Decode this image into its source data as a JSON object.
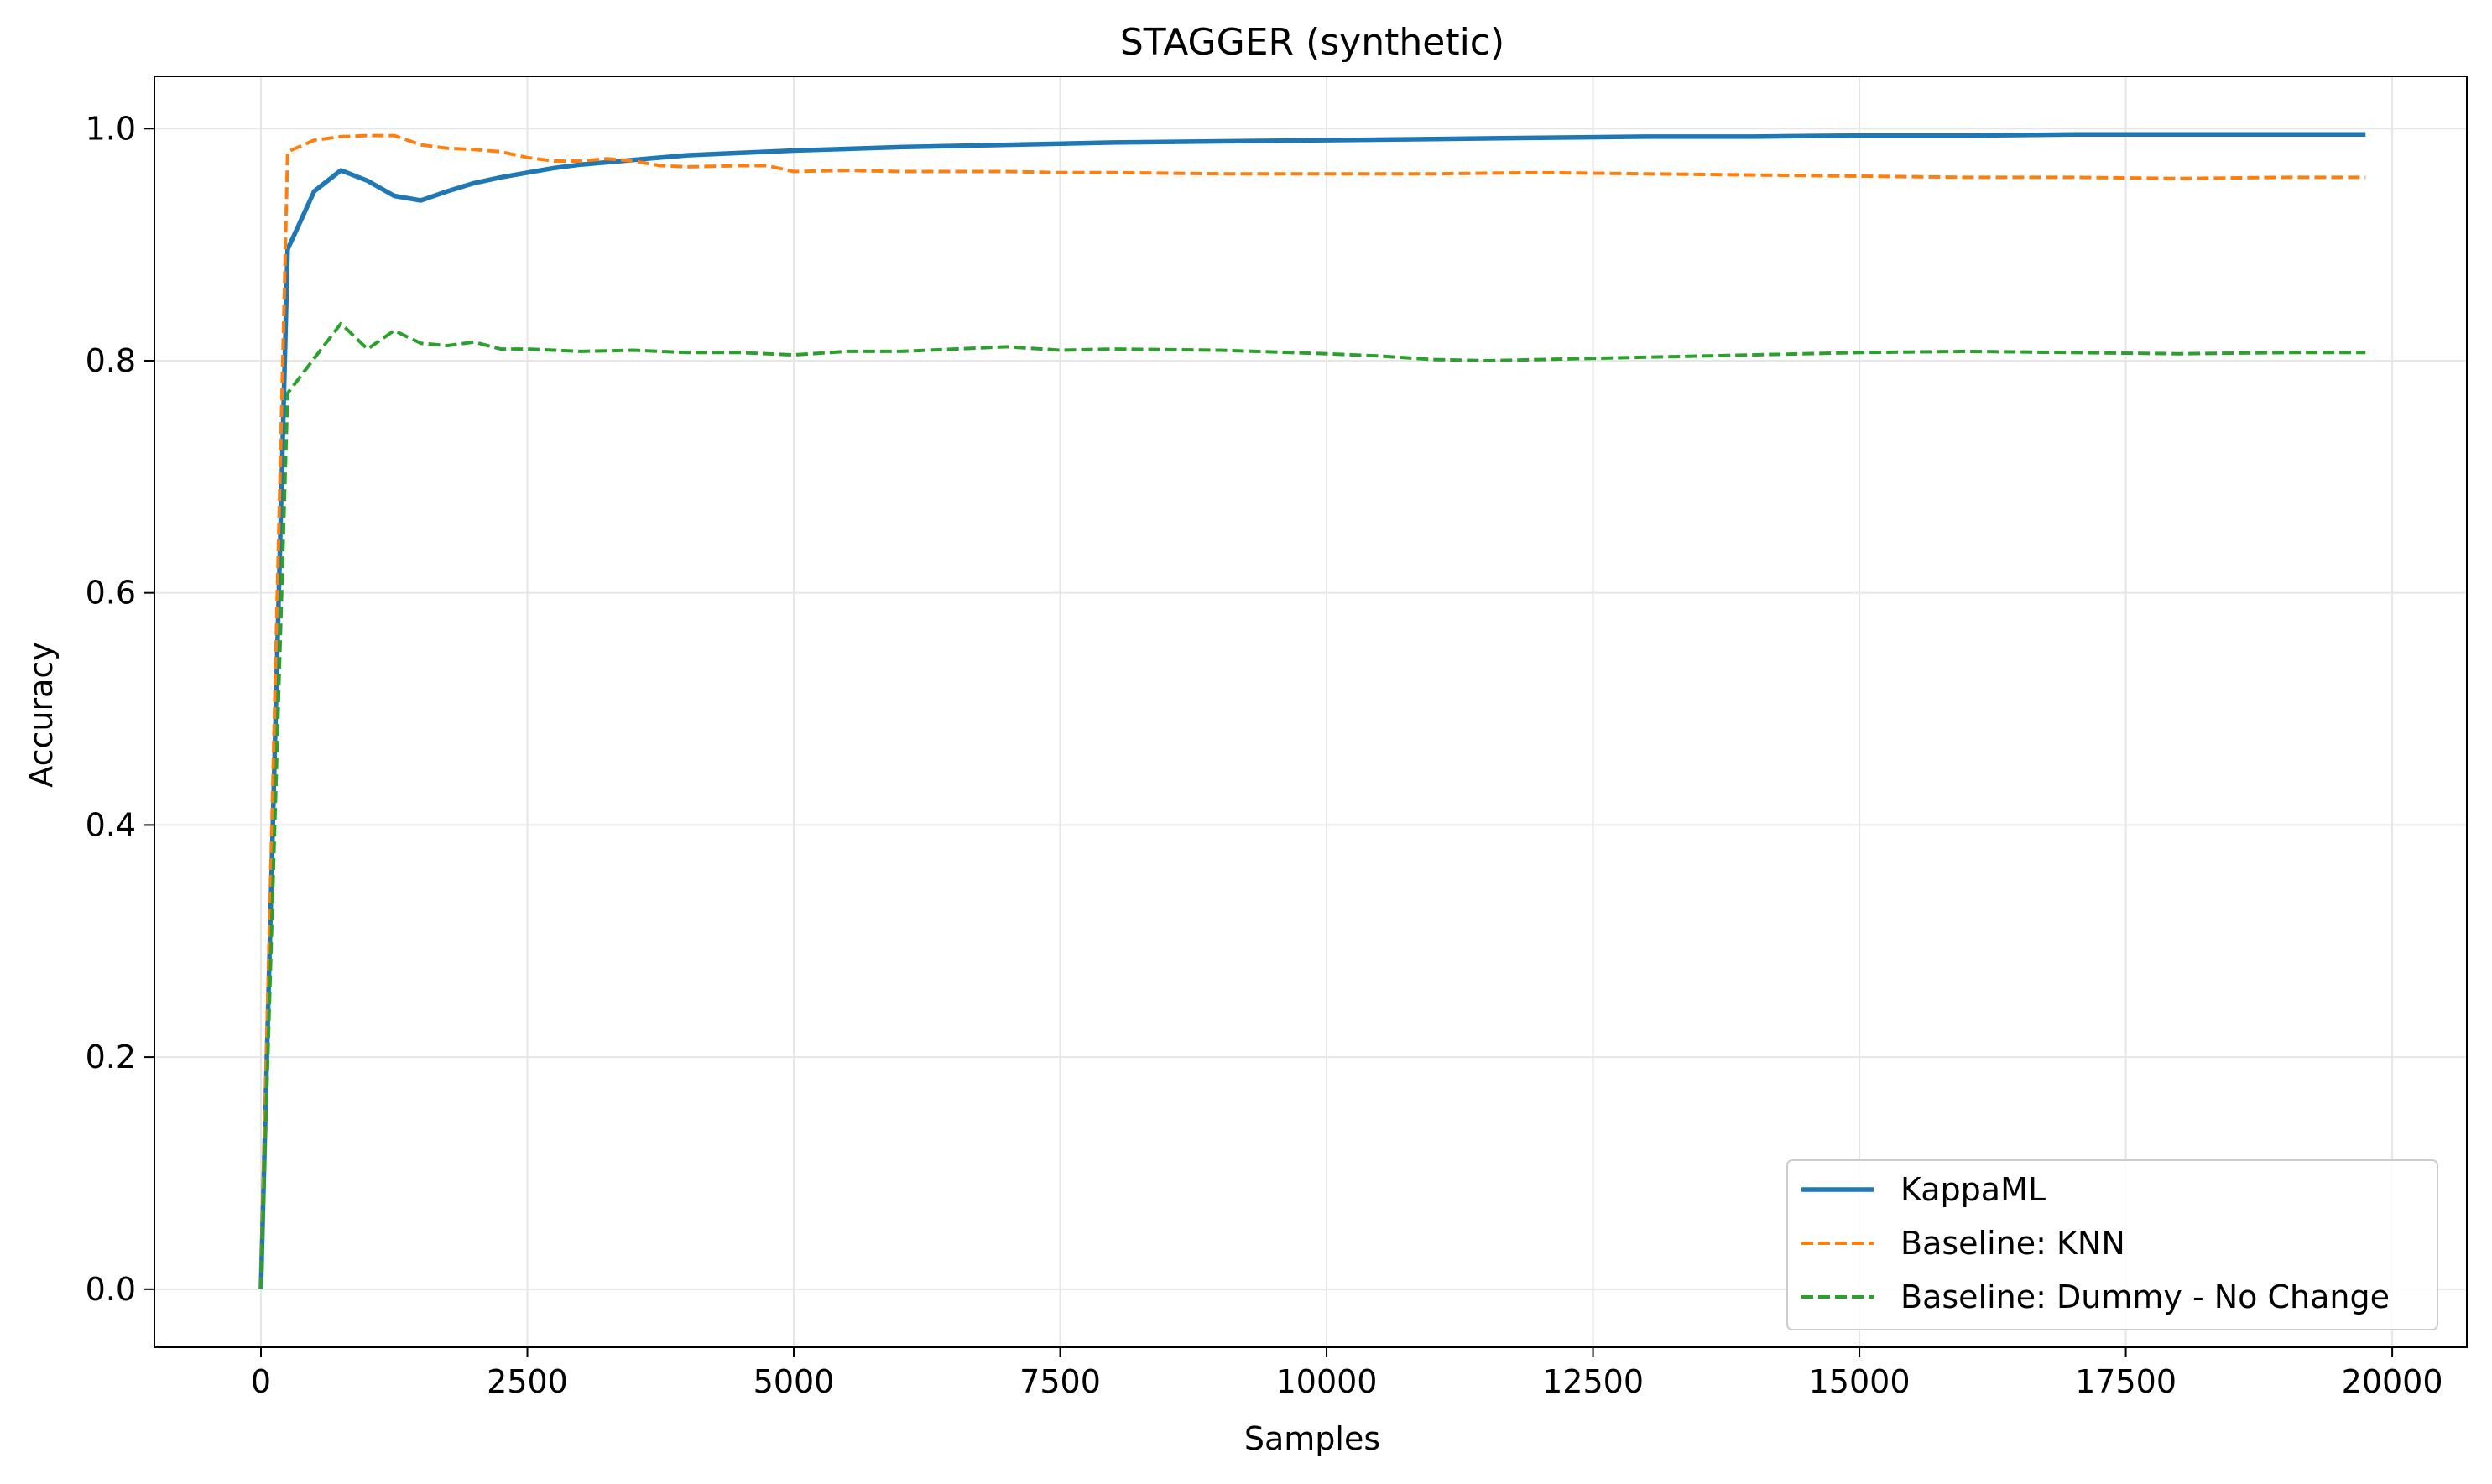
{
  "chart_data": {
    "type": "line",
    "title": "STAGGER (synthetic)",
    "xlabel": "Samples",
    "ylabel": "Accuracy",
    "xlim": [
      -1000,
      20700
    ],
    "ylim": [
      -0.05,
      1.045
    ],
    "xticks": [
      0,
      2500,
      5000,
      7500,
      10000,
      12500,
      15000,
      17500,
      20000
    ],
    "xtick_labels": [
      "0",
      "2500",
      "5000",
      "7500",
      "10000",
      "12500",
      "15000",
      "17500",
      "20000"
    ],
    "yticks": [
      0.0,
      0.2,
      0.4,
      0.6,
      0.8,
      1.0
    ],
    "ytick_labels": [
      "0.0",
      "0.2",
      "0.4",
      "0.6",
      "0.8",
      "1.0"
    ],
    "grid": true,
    "legend_position": "bottom-right",
    "series": [
      {
        "name": "KappaML",
        "color": "#1f77b4",
        "style": "solid",
        "x": [
          0,
          250,
          500,
          750,
          1000,
          1250,
          1500,
          1750,
          2000,
          2250,
          2500,
          2750,
          3000,
          3500,
          4000,
          4500,
          5000,
          6000,
          7000,
          8000,
          9000,
          10000,
          11000,
          12000,
          13000,
          14000,
          15000,
          16000,
          17000,
          18000,
          19000,
          19750
        ],
        "y": [
          0.0,
          0.896,
          0.946,
          0.964,
          0.955,
          0.942,
          0.938,
          0.946,
          0.953,
          0.958,
          0.962,
          0.966,
          0.969,
          0.973,
          0.977,
          0.979,
          0.981,
          0.984,
          0.986,
          0.988,
          0.989,
          0.99,
          0.991,
          0.992,
          0.993,
          0.993,
          0.994,
          0.994,
          0.995,
          0.995,
          0.995,
          0.995
        ]
      },
      {
        "name": "Baseline: KNN",
        "color": "#ff7f0e",
        "style": "dashed",
        "x": [
          0,
          250,
          500,
          750,
          1000,
          1250,
          1500,
          1750,
          2000,
          2250,
          2500,
          2750,
          3000,
          3250,
          3500,
          3750,
          4000,
          4500,
          4750,
          5000,
          5500,
          6000,
          7000,
          7500,
          8000,
          9000,
          10000,
          11000,
          12000,
          13000,
          14000,
          15000,
          16000,
          17000,
          18000,
          19000,
          19750
        ],
        "y": [
          0.0,
          0.98,
          0.99,
          0.993,
          0.994,
          0.994,
          0.986,
          0.983,
          0.982,
          0.98,
          0.975,
          0.972,
          0.972,
          0.974,
          0.972,
          0.968,
          0.967,
          0.968,
          0.968,
          0.963,
          0.964,
          0.963,
          0.963,
          0.962,
          0.962,
          0.961,
          0.961,
          0.961,
          0.962,
          0.961,
          0.96,
          0.959,
          0.958,
          0.958,
          0.957,
          0.958,
          0.958
        ]
      },
      {
        "name": "Baseline: Dummy - No Change",
        "color": "#2ca02c",
        "style": "dashed",
        "x": [
          0,
          250,
          500,
          750,
          1000,
          1250,
          1500,
          1750,
          2000,
          2250,
          2500,
          3000,
          3500,
          4000,
          4500,
          5000,
          5500,
          6000,
          7000,
          7500,
          8000,
          9000,
          10000,
          10500,
          11000,
          11500,
          12000,
          13000,
          14000,
          15000,
          16000,
          17000,
          18000,
          19000,
          19750
        ],
        "y": [
          0.0,
          0.772,
          0.802,
          0.832,
          0.81,
          0.826,
          0.815,
          0.813,
          0.816,
          0.81,
          0.81,
          0.808,
          0.809,
          0.807,
          0.807,
          0.805,
          0.808,
          0.808,
          0.812,
          0.809,
          0.81,
          0.809,
          0.806,
          0.804,
          0.801,
          0.8,
          0.801,
          0.803,
          0.805,
          0.807,
          0.808,
          0.807,
          0.806,
          0.807,
          0.807
        ]
      }
    ]
  }
}
